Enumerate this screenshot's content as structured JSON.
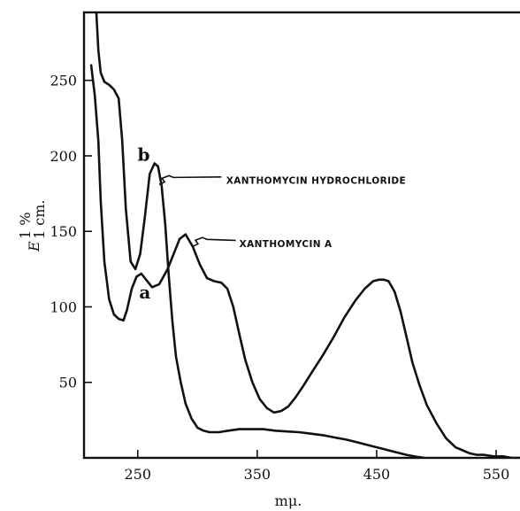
{
  "chart_data": {
    "type": "line",
    "title": "",
    "xlabel": "mμ.",
    "ylabel_main": "E",
    "ylabel_sup": "1 %",
    "ylabel_sub": "1 cm.",
    "xlim": [
      205,
      570
    ],
    "ylim": [
      0,
      295
    ],
    "xticks": [
      250,
      350,
      450,
      550
    ],
    "xtick_labels": [
      "250",
      "350",
      "450",
      "550"
    ],
    "yticks": [
      50,
      100,
      150,
      200,
      250
    ],
    "ytick_labels": [
      "50",
      "100",
      "150",
      "200",
      "250"
    ],
    "grid": false,
    "series": [
      {
        "label": "a",
        "annotation": "XANTHOMYCIN A",
        "x": [
          211,
          214,
          217,
          219,
          222,
          226,
          230,
          234,
          238,
          241,
          245,
          249,
          253,
          257,
          262,
          268,
          275,
          281,
          285,
          290,
          296,
          302,
          308,
          314,
          320,
          325,
          330,
          335,
          340,
          346,
          352,
          358,
          364,
          370,
          376,
          382,
          388,
          396,
          405,
          414,
          423,
          432,
          440,
          447,
          452,
          456,
          460,
          465,
          470,
          475,
          480,
          486,
          492,
          500,
          508,
          516,
          522,
          528,
          534,
          540,
          548,
          556,
          563,
          570
        ],
        "y": [
          260,
          240,
          210,
          170,
          130,
          105,
          95,
          92,
          91,
          98,
          112,
          120,
          122,
          118,
          113,
          115,
          125,
          137,
          145,
          148,
          140,
          128,
          119,
          117,
          116,
          112,
          100,
          82,
          65,
          50,
          39,
          33,
          30,
          31,
          34,
          40,
          47,
          57,
          68,
          80,
          93,
          104,
          112,
          117,
          118,
          118,
          117,
          110,
          97,
          80,
          63,
          48,
          35,
          23,
          13,
          7,
          5,
          3,
          2,
          2,
          1,
          1,
          0,
          0
        ]
      },
      {
        "label": "b",
        "annotation": "XANTHOMYCIN HYDROCHLORIDE",
        "x": [
          215,
          217,
          219,
          222,
          226,
          230,
          234,
          237,
          240,
          244,
          248,
          252,
          256,
          260,
          264,
          267,
          270,
          273,
          276,
          279,
          282,
          286,
          290,
          295,
          300,
          305,
          310,
          318,
          326,
          335,
          345,
          355,
          365,
          375,
          385,
          395,
          405,
          415,
          425,
          435,
          445,
          455,
          465,
          475,
          485,
          490
        ],
        "y": [
          300,
          270,
          255,
          249,
          247,
          244,
          238,
          210,
          165,
          130,
          125,
          135,
          160,
          188,
          195,
          193,
          180,
          155,
          120,
          90,
          67,
          50,
          36,
          26,
          20,
          18,
          17,
          17,
          18,
          19,
          19,
          19,
          18,
          17.5,
          17,
          16,
          15,
          13.5,
          12,
          10,
          8,
          6,
          4,
          2,
          0.5,
          0
        ]
      }
    ],
    "annotations": [
      {
        "text": "XANTHOMYCIN HYDROCHLORIDE",
        "curve": "b"
      },
      {
        "text": "XANTHOMYCIN A",
        "curve": "a"
      }
    ]
  }
}
